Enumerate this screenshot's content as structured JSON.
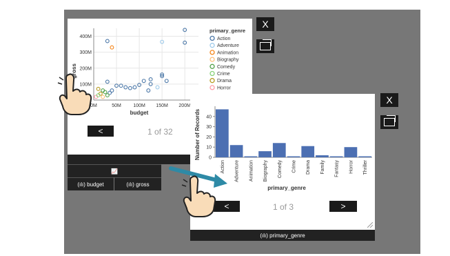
{
  "scatter_card": {
    "pager": {
      "prev_label": "<",
      "page_text": "1 of 32"
    },
    "close_label": "X",
    "toolbar_icons": "📈 + 🖌",
    "chart_icon": "📈",
    "fields": [
      {
        "icon": "(ılı)",
        "label": "budget"
      },
      {
        "icon": "(ılı)",
        "label": "gross"
      }
    ]
  },
  "bar_card": {
    "pager": {
      "prev_label": "<",
      "page_text": "1 of 3",
      "next_label": ">"
    },
    "close_label": "X",
    "field": {
      "icon": "(ılı)",
      "label": "primary_genre"
    }
  },
  "chart_data": [
    {
      "type": "scatter",
      "xlabel": "budget",
      "ylabel": "gross",
      "x_ticks": [
        "0M",
        "50M",
        "100M",
        "150M",
        "200M"
      ],
      "y_ticks": [
        "100M",
        "200M",
        "300M",
        "400M"
      ],
      "xlim": [
        0,
        230
      ],
      "ylim": [
        0,
        450
      ],
      "legend_title": "primary_genre",
      "legend": [
        {
          "name": "Action",
          "color": "#4c78a8"
        },
        {
          "name": "Adventure",
          "color": "#9ecae9"
        },
        {
          "name": "Animation",
          "color": "#f58518"
        },
        {
          "name": "Biography",
          "color": "#ffbf79"
        },
        {
          "name": "Comedy",
          "color": "#54a24b"
        },
        {
          "name": "Crime",
          "color": "#88d27a"
        },
        {
          "name": "Drama",
          "color": "#b79a20"
        },
        {
          "name": "Horror",
          "color": "#ff9da6"
        }
      ],
      "points": [
        {
          "x": 200,
          "y": 440,
          "g": "Action"
        },
        {
          "x": 200,
          "y": 360,
          "g": "Action"
        },
        {
          "x": 30,
          "y": 370,
          "g": "Action"
        },
        {
          "x": 40,
          "y": 330,
          "g": "Animation"
        },
        {
          "x": 150,
          "y": 365,
          "g": "Adventure"
        },
        {
          "x": 150,
          "y": 160,
          "g": "Action"
        },
        {
          "x": 150,
          "y": 150,
          "g": "Action"
        },
        {
          "x": 125,
          "y": 130,
          "g": "Action"
        },
        {
          "x": 110,
          "y": 120,
          "g": "Action"
        },
        {
          "x": 100,
          "y": 95,
          "g": "Action"
        },
        {
          "x": 125,
          "y": 100,
          "g": "Action"
        },
        {
          "x": 90,
          "y": 80,
          "g": "Action"
        },
        {
          "x": 80,
          "y": 75,
          "g": "Action"
        },
        {
          "x": 70,
          "y": 80,
          "g": "Action"
        },
        {
          "x": 60,
          "y": 90,
          "g": "Action"
        },
        {
          "x": 50,
          "y": 90,
          "g": "Action"
        },
        {
          "x": 30,
          "y": 115,
          "g": "Action"
        },
        {
          "x": 120,
          "y": 60,
          "g": "Action"
        },
        {
          "x": 140,
          "y": 80,
          "g": "Adventure"
        },
        {
          "x": 160,
          "y": 120,
          "g": "Action"
        },
        {
          "x": 20,
          "y": 60,
          "g": "Comedy"
        },
        {
          "x": 25,
          "y": 50,
          "g": "Comedy"
        },
        {
          "x": 15,
          "y": 40,
          "g": "Drama"
        },
        {
          "x": 10,
          "y": 70,
          "g": "Drama"
        },
        {
          "x": 5,
          "y": 20,
          "g": "Horror"
        },
        {
          "x": 35,
          "y": 45,
          "g": "Action"
        },
        {
          "x": 40,
          "y": 60,
          "g": "Action"
        },
        {
          "x": 10,
          "y": 30,
          "g": "Crime"
        },
        {
          "x": 20,
          "y": 20,
          "g": "Biography"
        },
        {
          "x": 30,
          "y": 30,
          "g": "Comedy"
        }
      ]
    },
    {
      "type": "bar",
      "xlabel": "primary_genre",
      "ylabel": "Number of Records",
      "categories": [
        "Action",
        "Adventure",
        "Animation",
        "Biography",
        "Comedy",
        "Crime",
        "Drama",
        "Family",
        "Fantasy",
        "Horror",
        "Thriller"
      ],
      "values": [
        47,
        12,
        1,
        6,
        14,
        1,
        11,
        2,
        1,
        10,
        1
      ],
      "y_ticks": [
        0,
        10,
        20,
        30,
        40
      ],
      "ylim": [
        0,
        50
      ],
      "color": "#4c6fb2"
    }
  ]
}
